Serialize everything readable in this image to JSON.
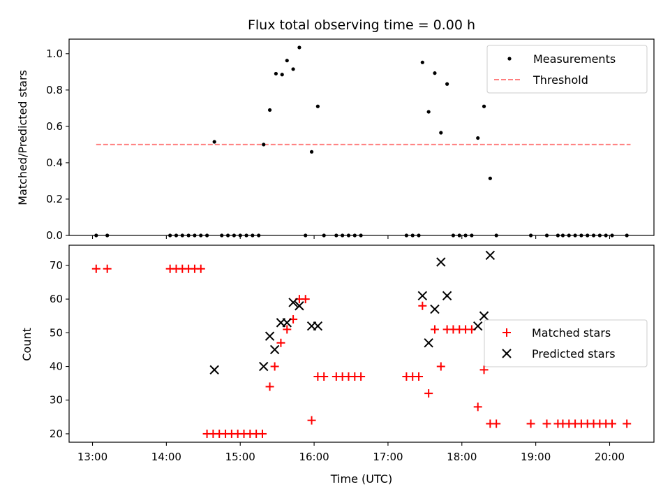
{
  "title": "Flux total observing time = 0.00 h",
  "chart_data": [
    {
      "type": "scatter",
      "ylabel": "Matched/Predicted stars",
      "ylim": [
        0,
        1.08
      ],
      "yticks": [
        "0.0",
        "0.2",
        "0.4",
        "0.6",
        "0.8",
        "1.0"
      ],
      "legend": "top-right",
      "series": [
        {
          "name": "Measurements",
          "color": "#000000",
          "marker": "dot",
          "points": [
            [
              "13:03",
              0
            ],
            [
              "13:12",
              0
            ],
            [
              "14:03",
              0
            ],
            [
              "14:08",
              0
            ],
            [
              "14:13",
              0
            ],
            [
              "14:18",
              0
            ],
            [
              "14:23",
              0
            ],
            [
              "14:28",
              0
            ],
            [
              "14:33",
              0
            ],
            [
              "14:39",
              0.515
            ],
            [
              "14:45",
              0
            ],
            [
              "14:50",
              0
            ],
            [
              "14:55",
              0
            ],
            [
              "15:00",
              0
            ],
            [
              "15:05",
              0
            ],
            [
              "15:10",
              0
            ],
            [
              "15:15",
              0
            ],
            [
              "15:19",
              0.5
            ],
            [
              "15:24",
              0.69
            ],
            [
              "15:29",
              0.89
            ],
            [
              "15:34",
              0.885
            ],
            [
              "15:38",
              0.962
            ],
            [
              "15:43",
              0.915
            ],
            [
              "15:48",
              1.034
            ],
            [
              "15:53",
              0
            ],
            [
              "15:58",
              0.46
            ],
            [
              "16:03",
              0.71
            ],
            [
              "16:08",
              0
            ],
            [
              "16:18",
              0
            ],
            [
              "16:23",
              0
            ],
            [
              "16:28",
              0
            ],
            [
              "16:33",
              0
            ],
            [
              "16:38",
              0
            ],
            [
              "17:15",
              0
            ],
            [
              "17:20",
              0
            ],
            [
              "17:25",
              0
            ],
            [
              "17:28",
              0.952
            ],
            [
              "17:33",
              0.68
            ],
            [
              "17:38",
              0.893
            ],
            [
              "17:43",
              0.565
            ],
            [
              "17:48",
              0.833
            ],
            [
              "17:53",
              0
            ],
            [
              "17:58",
              0
            ],
            [
              "18:03",
              0
            ],
            [
              "18:08",
              0
            ],
            [
              "18:13",
              0.536
            ],
            [
              "18:18",
              0.71
            ],
            [
              "18:23",
              0.314
            ],
            [
              "18:28",
              0
            ],
            [
              "18:56",
              0
            ],
            [
              "19:09",
              0
            ],
            [
              "19:18",
              0
            ],
            [
              "19:22",
              0
            ],
            [
              "19:27",
              0
            ],
            [
              "19:32",
              0
            ],
            [
              "19:37",
              0
            ],
            [
              "19:42",
              0
            ],
            [
              "19:47",
              0
            ],
            [
              "19:52",
              0
            ],
            [
              "19:57",
              0
            ],
            [
              "20:02",
              0
            ],
            [
              "20:14",
              0
            ]
          ]
        },
        {
          "name": "Threshold",
          "color": "#ff7f7f",
          "marker": "dashed-line",
          "points": [
            [
              "13:03",
              0.5
            ],
            [
              "20:17",
              0.5
            ]
          ]
        }
      ]
    },
    {
      "type": "scatter",
      "xlabel": "Time (UTC)",
      "ylabel": "Count",
      "ylim": [
        17.5,
        76
      ],
      "yticks": [
        "20",
        "30",
        "40",
        "50",
        "60",
        "70"
      ],
      "xlim": [
        "12:41",
        "20:36"
      ],
      "xticks": [
        "13:00",
        "14:00",
        "15:00",
        "16:00",
        "17:00",
        "18:00",
        "19:00",
        "20:00"
      ],
      "legend": "center-right",
      "series": [
        {
          "name": "Matched stars",
          "color": "#ff0000",
          "marker": "plus",
          "points": [
            [
              "13:03",
              69
            ],
            [
              "13:12",
              69
            ],
            [
              "14:03",
              69
            ],
            [
              "14:08",
              69
            ],
            [
              "14:13",
              69
            ],
            [
              "14:18",
              69
            ],
            [
              "14:23",
              69
            ],
            [
              "14:28",
              69
            ],
            [
              "14:33",
              20
            ],
            [
              "14:38",
              20
            ],
            [
              "14:43",
              20
            ],
            [
              "14:48",
              20
            ],
            [
              "14:53",
              20
            ],
            [
              "14:58",
              20
            ],
            [
              "15:03",
              20
            ],
            [
              "15:08",
              20
            ],
            [
              "15:13",
              20
            ],
            [
              "15:18",
              20
            ],
            [
              "15:24",
              34
            ],
            [
              "15:28",
              40
            ],
            [
              "15:33",
              47
            ],
            [
              "15:38",
              51
            ],
            [
              "15:43",
              54
            ],
            [
              "15:48",
              60
            ],
            [
              "15:53",
              60
            ],
            [
              "15:58",
              24
            ],
            [
              "16:03",
              37
            ],
            [
              "16:08",
              37
            ],
            [
              "16:18",
              37
            ],
            [
              "16:23",
              37
            ],
            [
              "16:28",
              37
            ],
            [
              "16:33",
              37
            ],
            [
              "16:38",
              37
            ],
            [
              "17:15",
              37
            ],
            [
              "17:20",
              37
            ],
            [
              "17:25",
              37
            ],
            [
              "17:28",
              58
            ],
            [
              "17:33",
              32
            ],
            [
              "17:38",
              51
            ],
            [
              "17:43",
              40
            ],
            [
              "17:48",
              51
            ],
            [
              "17:53",
              51
            ],
            [
              "17:58",
              51
            ],
            [
              "18:03",
              51
            ],
            [
              "18:08",
              51
            ],
            [
              "18:13",
              28
            ],
            [
              "18:18",
              39
            ],
            [
              "18:23",
              23
            ],
            [
              "18:28",
              23
            ],
            [
              "18:56",
              23
            ],
            [
              "19:09",
              23
            ],
            [
              "19:18",
              23
            ],
            [
              "19:22",
              23
            ],
            [
              "19:27",
              23
            ],
            [
              "19:32",
              23
            ],
            [
              "19:37",
              23
            ],
            [
              "19:42",
              23
            ],
            [
              "19:47",
              23
            ],
            [
              "19:52",
              23
            ],
            [
              "19:57",
              23
            ],
            [
              "20:02",
              23
            ],
            [
              "20:14",
              23
            ]
          ]
        },
        {
          "name": "Predicted stars",
          "color": "#000000",
          "marker": "x",
          "points": [
            [
              "14:39",
              39
            ],
            [
              "15:19",
              40
            ],
            [
              "15:24",
              49
            ],
            [
              "15:28",
              45
            ],
            [
              "15:33",
              53
            ],
            [
              "15:38",
              53
            ],
            [
              "15:43",
              59
            ],
            [
              "15:48",
              58
            ],
            [
              "15:58",
              52
            ],
            [
              "16:03",
              52
            ],
            [
              "17:28",
              61
            ],
            [
              "17:33",
              47
            ],
            [
              "17:38",
              57
            ],
            [
              "17:43",
              71
            ],
            [
              "17:48",
              61
            ],
            [
              "18:13",
              52
            ],
            [
              "18:18",
              55
            ],
            [
              "18:23",
              73
            ]
          ]
        }
      ]
    }
  ]
}
